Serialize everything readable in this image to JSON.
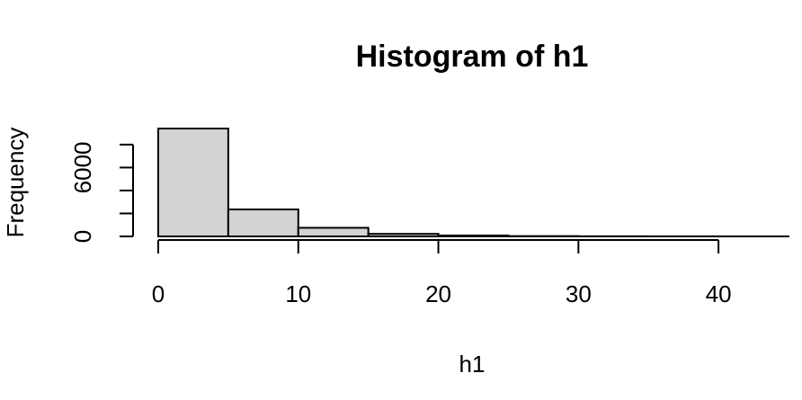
{
  "chart_data": {
    "type": "bar",
    "title": "Histogram of h1",
    "xlabel": "h1",
    "ylabel": "Frequency",
    "bins": [
      {
        "from": 0,
        "to": 5,
        "count": 9400
      },
      {
        "from": 5,
        "to": 10,
        "count": 2350
      },
      {
        "from": 10,
        "to": 15,
        "count": 750
      },
      {
        "from": 15,
        "to": 20,
        "count": 220
      },
      {
        "from": 20,
        "to": 25,
        "count": 80
      },
      {
        "from": 25,
        "to": 30,
        "count": 25
      },
      {
        "from": 30,
        "to": 35,
        "count": 10
      },
      {
        "from": 35,
        "to": 40,
        "count": 5
      },
      {
        "from": 40,
        "to": 45,
        "count": 2
      }
    ],
    "xticks": [
      0,
      10,
      20,
      30,
      40
    ],
    "xtick_labels": [
      "0",
      "10",
      "20",
      "30",
      "40"
    ],
    "yticks": [
      0,
      2000,
      4000,
      6000,
      8000
    ],
    "ytick_labels": [
      "0",
      "",
      "",
      "6000",
      ""
    ],
    "xlim": [
      0,
      45
    ],
    "ylim": [
      0,
      9400
    ],
    "bar_fill": "#d3d3d3",
    "grid": false,
    "legend": "none"
  }
}
